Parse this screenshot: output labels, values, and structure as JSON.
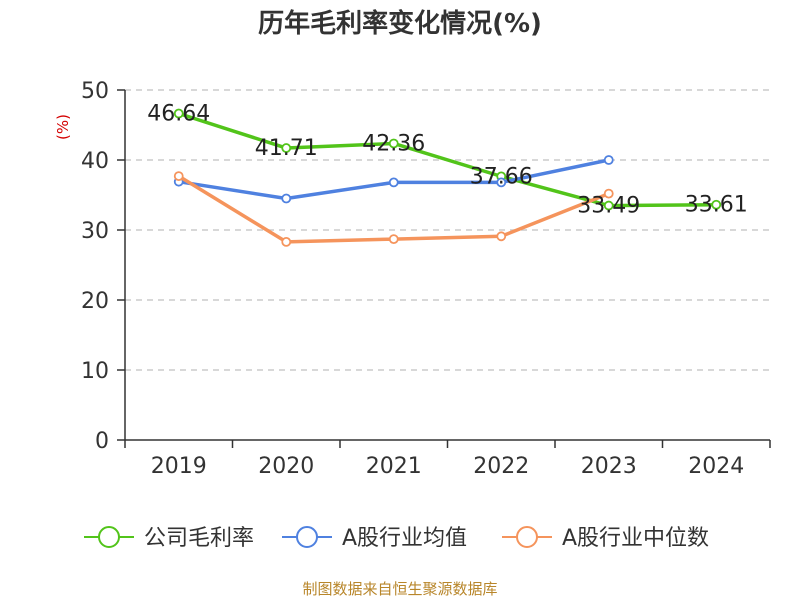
{
  "title": "历年毛利率变化情况(%)",
  "source": "制图数据来自恒生聚源数据库",
  "chart_data": {
    "type": "line",
    "title": "历年毛利率变化情况(%)",
    "ylabel": "(%)",
    "xlabel": "",
    "categories": [
      "2019",
      "2020",
      "2021",
      "2022",
      "2023",
      "2024"
    ],
    "ylim": [
      0,
      50
    ],
    "yticks": [
      0,
      10,
      20,
      30,
      40,
      50
    ],
    "grid": true,
    "legend_position": "bottom",
    "series": [
      {
        "name": "公司毛利率",
        "color": "#52c41a",
        "values": [
          46.64,
          41.71,
          42.36,
          37.66,
          33.49,
          33.61
        ],
        "data_labels": [
          "46.64",
          "41.71",
          "42.36",
          "37.66",
          "33.49",
          "33.61"
        ]
      },
      {
        "name": "A股行业均值",
        "color": "#4f81e0",
        "values": [
          36.9,
          34.5,
          36.8,
          36.8,
          40.0,
          null
        ]
      },
      {
        "name": "A股行业中位数",
        "color": "#f5945c",
        "values": [
          37.7,
          28.3,
          28.7,
          29.1,
          35.2,
          null
        ]
      }
    ]
  }
}
